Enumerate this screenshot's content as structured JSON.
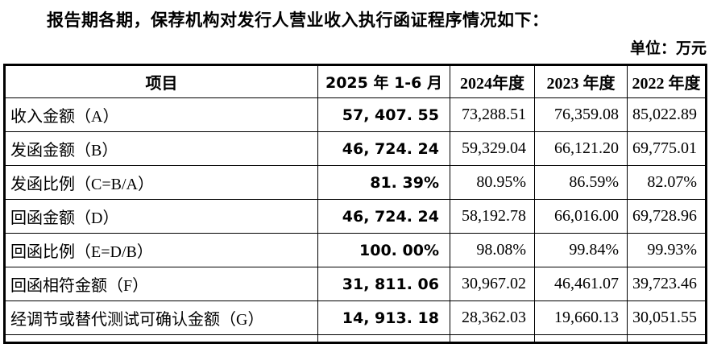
{
  "page": {
    "title": "报告期各期，保荐机构对发行人营业收入执行函证程序情况如下：",
    "unit_label": "单位：万元"
  },
  "colors": {
    "text": "#000000",
    "background": "#ffffff",
    "table_border": "#000000"
  },
  "table": {
    "columns": [
      "项目",
      "2025 年 1-6 月",
      "2024年度",
      "2023 年度",
      "2022 年度"
    ],
    "rows": [
      {
        "label": "收入金额（A）",
        "values": [
          "57, 407. 55",
          "73,288.51",
          "76,359.08",
          "85,022.89"
        ]
      },
      {
        "label": "发函金额（B）",
        "values": [
          "46, 724. 24",
          "59,329.04",
          "66,121.20",
          "69,775.01"
        ]
      },
      {
        "label": "发函比例（C=B/A）",
        "values": [
          "81. 39%",
          "80.95%",
          "86.59%",
          "82.07%"
        ]
      },
      {
        "label": "回函金额（D）",
        "values": [
          "46, 724. 24",
          "58,192.78",
          "66,016.00",
          "69,728.96"
        ]
      },
      {
        "label": "回函比例（E=D/B）",
        "values": [
          "100. 00%",
          "98.08%",
          "99.84%",
          "99.93%"
        ]
      },
      {
        "label": "回函相符金额（F）",
        "values": [
          "31, 811. 06",
          "30,967.02",
          "46,461.07",
          "39,723.46"
        ]
      },
      {
        "label": "经调节或替代测试可确认金额（G）",
        "values": [
          "14, 913. 18",
          "28,362.03",
          "19,660.13",
          "30,051.55"
        ]
      }
    ]
  }
}
